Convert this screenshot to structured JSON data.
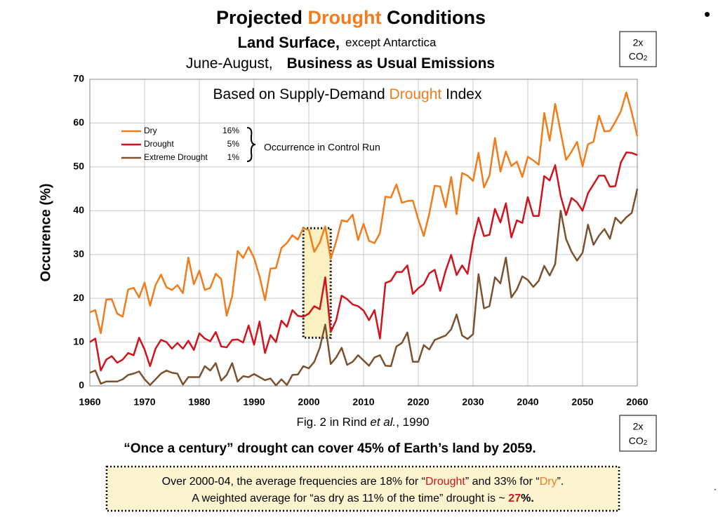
{
  "slide": {
    "title": [
      "Projected ",
      "Drought",
      " Conditions"
    ],
    "subtitle1": [
      "Land Surface,",
      "except Antarctica"
    ],
    "subtitle2": [
      "June-August,",
      "Business as Usual Emissions"
    ],
    "co2_box": {
      "line1": "2x",
      "line2": "CO",
      "sub": "2"
    },
    "caption": [
      "Fig. 2 in Rind ",
      "et al.",
      ", 1990"
    ],
    "headline": "“Once a century” drought can cover 45% of Earth’s land by 2059.",
    "note": {
      "line1": [
        "Over 2000-04, the average frequencies are 18% for “",
        "Drought",
        "” and 33% for “",
        "Dry",
        "”."
      ],
      "line2": [
        "A weighted average for “as dry as 11% of the time” drought is ~ ",
        "27",
        "%."
      ]
    },
    "bullet": "•",
    "dot": "."
  },
  "chart_data": {
    "type": "line",
    "inner_title": [
      "Based on Supply-Demand ",
      "Drought",
      " Index"
    ],
    "ylabel": "Occurence (%)",
    "legend_note": "Occurrence in Control Run",
    "xlim": [
      1960,
      2060
    ],
    "ylim": [
      0,
      70
    ],
    "xticks": [
      1960,
      1970,
      1980,
      1990,
      2000,
      2010,
      2020,
      2030,
      2040,
      2050,
      2060
    ],
    "yticks": [
      0,
      10,
      20,
      30,
      40,
      50,
      60,
      70
    ],
    "grid": true,
    "highlight": {
      "xlim": [
        1999,
        2004
      ],
      "ylim": [
        11,
        36
      ],
      "color": "#fbf0c0"
    },
    "x": [
      1960,
      1961,
      1962,
      1963,
      1964,
      1965,
      1966,
      1967,
      1968,
      1969,
      1970,
      1971,
      1972,
      1973,
      1974,
      1975,
      1976,
      1977,
      1978,
      1979,
      1980,
      1981,
      1982,
      1983,
      1984,
      1985,
      1986,
      1987,
      1988,
      1989,
      1990,
      1991,
      1992,
      1993,
      1994,
      1995,
      1996,
      1997,
      1998,
      1999,
      2000,
      2001,
      2002,
      2003,
      2004,
      2005,
      2006,
      2007,
      2008,
      2009,
      2010,
      2011,
      2012,
      2013,
      2014,
      2015,
      2016,
      2017,
      2018,
      2019,
      2020,
      2021,
      2022,
      2023,
      2024,
      2025,
      2026,
      2027,
      2028,
      2029,
      2030,
      2031,
      2032,
      2033,
      2034,
      2035,
      2036,
      2037,
      2038,
      2039,
      2040,
      2041,
      2042,
      2043,
      2044,
      2045,
      2046,
      2047,
      2048,
      2049,
      2050,
      2051,
      2052,
      2053,
      2054,
      2055,
      2056,
      2057,
      2058,
      2059,
      2060
    ],
    "series": [
      {
        "name": "Dry",
        "control": "16%",
        "color": "#f07c1c",
        "values": [
          16.8,
          17.3,
          12,
          19.7,
          19.8,
          16.5,
          15.8,
          22,
          22.4,
          20.2,
          23.6,
          18.3,
          23,
          25.4,
          22.5,
          21.9,
          23,
          21.2,
          29.3,
          23.2,
          26.3,
          21.9,
          22.4,
          25.6,
          24.4,
          16,
          20.5,
          30.8,
          29.2,
          31.7,
          29.2,
          25,
          19.6,
          26.8,
          26.9,
          31.5,
          32.6,
          34.4,
          33.4,
          36,
          35.6,
          30.6,
          32.7,
          36.4,
          29,
          33,
          37.8,
          37.5,
          39.1,
          33.3,
          37,
          33.1,
          32.6,
          34.9,
          43.2,
          43,
          46,
          41.8,
          42.2,
          42.3,
          38,
          34.2,
          39.3,
          45.7,
          45.5,
          40.8,
          47.7,
          39.2,
          48.6,
          48,
          46.8,
          53.2,
          45.3,
          48,
          56.6,
          48.9,
          53.5,
          50.2,
          51.2,
          47.7,
          52.3,
          51.5,
          50.5,
          62.3,
          56,
          64.4,
          58,
          51.6,
          53.5,
          55.7,
          50.1,
          55.2,
          55.7,
          61.7,
          58.1,
          58.2,
          60.3,
          62.7,
          67,
          62.4,
          57
        ]
      },
      {
        "name": "Drought",
        "control": "5%",
        "color": "#d0141c",
        "values": [
          10,
          10.8,
          3.5,
          6,
          6.8,
          5.3,
          6,
          7.5,
          7,
          11,
          8.3,
          4.5,
          8.5,
          10.5,
          10,
          8.5,
          9.8,
          8.5,
          10.3,
          8.2,
          12,
          10.8,
          10.2,
          12.3,
          9,
          8.8,
          10.5,
          10.6,
          9.9,
          13.8,
          9.4,
          14.7,
          7.5,
          11.6,
          10,
          14.9,
          13.5,
          17.3,
          16,
          15.8,
          16.5,
          18.2,
          17.5,
          24.8,
          12.3,
          15,
          20.6,
          19.8,
          18.6,
          18.2,
          17.2,
          15,
          17.3,
          10.8,
          23.5,
          24,
          26,
          26,
          27.5,
          21,
          22.3,
          23.2,
          25.7,
          26.5,
          21.7,
          26.3,
          29.9,
          25.3,
          27.5,
          25.6,
          33.1,
          38.4,
          34.2,
          34.5,
          40.4,
          37.3,
          41.7,
          33.9,
          37.8,
          37.2,
          43.1,
          38.8,
          38.8,
          47.9,
          46.9,
          50.4,
          43.4,
          39,
          42.9,
          41.9,
          40,
          44,
          46,
          48,
          48,
          45.5,
          45.6,
          51,
          53.3,
          53.2,
          52.7
        ]
      },
      {
        "name": "Extreme Drought",
        "control": "1%",
        "color": "#7a5230",
        "values": [
          3,
          3.5,
          0.5,
          1,
          1,
          1,
          1.5,
          2.5,
          2.8,
          3.3,
          1.5,
          0.2,
          1.5,
          2.8,
          3.5,
          3,
          2.8,
          0.3,
          2,
          2,
          2,
          4.5,
          3.5,
          5.2,
          1.2,
          2.5,
          5.2,
          1,
          2.2,
          2,
          2.7,
          2,
          1.3,
          1.7,
          0.1,
          1.5,
          0.2,
          2.5,
          2.6,
          4.5,
          4,
          5.5,
          8.7,
          14,
          5,
          6.5,
          8.7,
          4.8,
          5.5,
          7,
          5.8,
          4.6,
          6.5,
          7,
          4.6,
          4.5,
          9,
          9.8,
          12.2,
          5.5,
          5.5,
          9.3,
          8.3,
          10.5,
          11,
          11.5,
          12.9,
          16.3,
          11.5,
          10.7,
          11.8,
          25.5,
          17.7,
          18.2,
          24.8,
          23.4,
          29.3,
          20.2,
          22,
          25,
          24.2,
          22.6,
          24,
          27.4,
          25.2,
          27.8,
          40,
          33.5,
          30.6,
          28.6,
          30.4,
          36.8,
          32.2,
          34.3,
          35.8,
          33.6,
          38.4,
          37.1,
          38.5,
          39.5,
          45
        ]
      }
    ]
  }
}
